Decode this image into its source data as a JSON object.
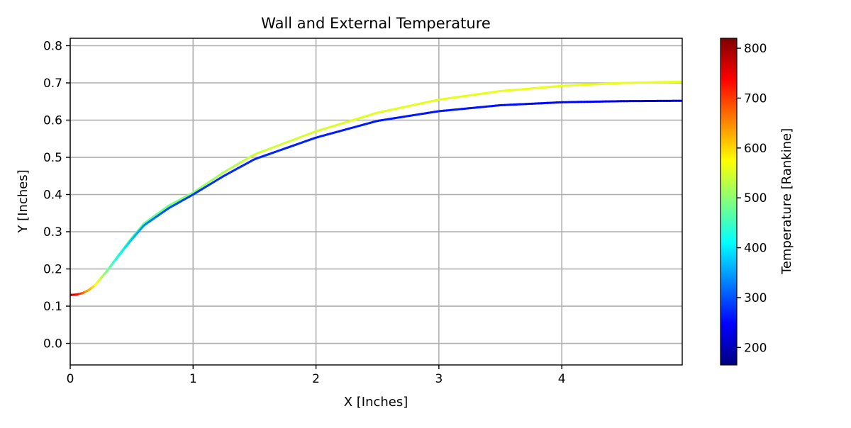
{
  "chart_data": {
    "type": "line",
    "title": "Wall and External Temperature",
    "xlabel": "X [Inches]",
    "ylabel": "Y [Inches]",
    "xlim": [
      0,
      4.98
    ],
    "ylim": [
      -0.058,
      0.82
    ],
    "xticks": [
      0,
      1,
      2,
      3,
      4
    ],
    "xtick_labels": [
      "0",
      "1",
      "2",
      "3",
      "4"
    ],
    "yticks": [
      0.0,
      0.1,
      0.2,
      0.3,
      0.4,
      0.5,
      0.6,
      0.7,
      0.8
    ],
    "ytick_labels": [
      "0.0",
      "0.1",
      "0.2",
      "0.3",
      "0.4",
      "0.5",
      "0.6",
      "0.7",
      "0.8"
    ],
    "grid": true,
    "colormap": "jet",
    "series": [
      {
        "x": [
          0,
          0.05,
          0.1,
          0.15,
          0.2,
          0.3,
          0.4,
          0.5,
          0.6,
          0.8,
          1.0,
          1.25,
          1.5,
          2.0,
          2.5,
          3.0,
          3.5,
          4.0,
          4.5,
          4.98
        ],
        "y": [
          0.13,
          0.131,
          0.135,
          0.143,
          0.156,
          0.195,
          0.24,
          0.283,
          0.322,
          0.37,
          0.405,
          0.46,
          0.508,
          0.57,
          0.62,
          0.655,
          0.678,
          0.692,
          0.7,
          0.703
        ],
        "temp": [
          820,
          760,
          700,
          640,
          600,
          520,
          480,
          470,
          475,
          490,
          500,
          520,
          540,
          550,
          555,
          558,
          560,
          560,
          560,
          560
        ]
      },
      {
        "x": [
          0,
          0.05,
          0.1,
          0.15,
          0.2,
          0.3,
          0.4,
          0.5,
          0.6,
          0.8,
          1.0,
          1.25,
          1.5,
          2.0,
          2.5,
          3.0,
          3.5,
          4.0,
          4.5,
          4.98
        ],
        "y": [
          0.13,
          0.131,
          0.135,
          0.143,
          0.156,
          0.195,
          0.238,
          0.279,
          0.317,
          0.363,
          0.4,
          0.45,
          0.495,
          0.553,
          0.598,
          0.624,
          0.64,
          0.648,
          0.651,
          0.652
        ],
        "temp": [
          820,
          760,
          700,
          640,
          600,
          500,
          420,
          380,
          340,
          300,
          285,
          275,
          270,
          265,
          262,
          260,
          258,
          250,
          240,
          230
        ]
      }
    ],
    "colorbar": {
      "label": "Temperature [Rankine]",
      "min": 165,
      "max": 820,
      "ticks": [
        200,
        300,
        400,
        500,
        600,
        700,
        800
      ],
      "tick_labels": [
        "200",
        "300",
        "400",
        "500",
        "600",
        "700",
        "800"
      ]
    }
  }
}
